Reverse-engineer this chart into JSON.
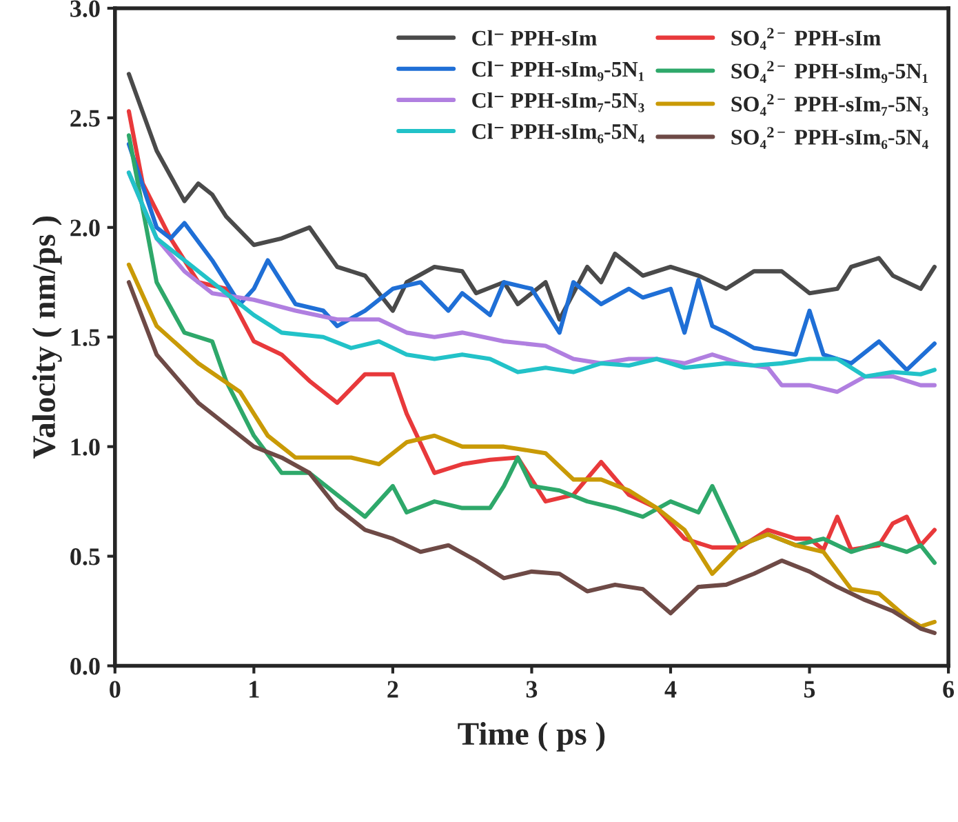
{
  "chart_data": {
    "type": "line",
    "xlabel": "Time ( ps )",
    "ylabel": "Valocity ( nm/ps )",
    "xlim": [
      0,
      6
    ],
    "ylim": [
      0,
      3.0
    ],
    "xticks": [
      0,
      1,
      2,
      3,
      4,
      5,
      6
    ],
    "yticks": [
      {
        "value": 0,
        "label": "0.0"
      },
      0.5,
      {
        "value": 1,
        "label": "1.0"
      },
      1.5,
      {
        "value": 2,
        "label": "2.0"
      },
      2.5,
      {
        "value": 3,
        "label": "3.0"
      }
    ],
    "grid": false,
    "legend": "top right",
    "line_style": "solid",
    "marker": "none",
    "series": [
      {
        "name": "Cl⁻ PPH-sIm",
        "color": "#4a4a4a",
        "x": [
          0.1,
          0.3,
          0.5,
          0.6,
          0.7,
          0.8,
          1.0,
          1.2,
          1.4,
          1.6,
          1.8,
          2.0,
          2.1,
          2.3,
          2.5,
          2.6,
          2.8,
          2.9,
          3.1,
          3.2,
          3.4,
          3.5,
          3.6,
          3.8,
          4.0,
          4.2,
          4.4,
          4.6,
          4.8,
          5.0,
          5.2,
          5.3,
          5.5,
          5.6,
          5.8,
          5.9
        ],
        "values": [
          2.7,
          2.35,
          2.12,
          2.2,
          2.15,
          2.05,
          1.92,
          1.95,
          2.0,
          1.82,
          1.78,
          1.62,
          1.75,
          1.82,
          1.8,
          1.7,
          1.75,
          1.65,
          1.75,
          1.58,
          1.82,
          1.75,
          1.88,
          1.78,
          1.82,
          1.78,
          1.72,
          1.8,
          1.8,
          1.7,
          1.72,
          1.82,
          1.86,
          1.78,
          1.72,
          1.82
        ]
      },
      {
        "name": "SO₄$^{2−}$ PPH-sIm",
        "color": "#e8393b",
        "x": [
          0.1,
          0.2,
          0.4,
          0.6,
          0.8,
          1.0,
          1.2,
          1.4,
          1.6,
          1.8,
          2.0,
          2.1,
          2.3,
          2.5,
          2.7,
          2.9,
          3.1,
          3.3,
          3.5,
          3.7,
          3.9,
          4.1,
          4.3,
          4.5,
          4.7,
          4.9,
          5.0,
          5.1,
          5.2,
          5.3,
          5.5,
          5.6,
          5.7,
          5.8,
          5.9
        ],
        "values": [
          2.53,
          2.2,
          1.95,
          1.75,
          1.72,
          1.48,
          1.42,
          1.3,
          1.2,
          1.33,
          1.33,
          1.15,
          0.88,
          0.92,
          0.94,
          0.95,
          0.75,
          0.78,
          0.93,
          0.78,
          0.72,
          0.58,
          0.54,
          0.54,
          0.62,
          0.58,
          0.58,
          0.53,
          0.68,
          0.53,
          0.55,
          0.65,
          0.68,
          0.55,
          0.62
        ]
      },
      {
        "name": "Cl⁻ PPH-sIm₉-5N₁",
        "color": "#1f6fd6",
        "x": [
          0.1,
          0.3,
          0.4,
          0.5,
          0.7,
          0.9,
          1.0,
          1.1,
          1.3,
          1.5,
          1.6,
          1.8,
          2.0,
          2.2,
          2.4,
          2.5,
          2.7,
          2.8,
          3.0,
          3.2,
          3.3,
          3.5,
          3.7,
          3.8,
          4.0,
          4.1,
          4.2,
          4.3,
          4.4,
          4.6,
          4.9,
          5.0,
          5.1,
          5.3,
          5.5,
          5.7,
          5.9
        ],
        "values": [
          2.38,
          2.0,
          1.95,
          2.02,
          1.85,
          1.65,
          1.72,
          1.85,
          1.65,
          1.62,
          1.55,
          1.62,
          1.72,
          1.75,
          1.62,
          1.7,
          1.6,
          1.75,
          1.72,
          1.52,
          1.75,
          1.65,
          1.72,
          1.68,
          1.72,
          1.52,
          1.76,
          1.55,
          1.52,
          1.45,
          1.42,
          1.62,
          1.42,
          1.38,
          1.48,
          1.35,
          1.47
        ]
      },
      {
        "name": "SO₄$^{2−}$ PPH-sIm₉-5N₁",
        "color": "#2ea86a",
        "x": [
          0.1,
          0.3,
          0.5,
          0.7,
          0.8,
          1.0,
          1.2,
          1.4,
          1.6,
          1.8,
          2.0,
          2.1,
          2.3,
          2.5,
          2.7,
          2.8,
          2.9,
          3.0,
          3.2,
          3.4,
          3.6,
          3.8,
          4.0,
          4.2,
          4.3,
          4.5,
          4.7,
          4.9,
          5.1,
          5.3,
          5.5,
          5.7,
          5.8,
          5.9
        ],
        "values": [
          2.42,
          1.75,
          1.52,
          1.48,
          1.3,
          1.05,
          0.88,
          0.88,
          0.78,
          0.68,
          0.82,
          0.7,
          0.75,
          0.72,
          0.72,
          0.82,
          0.95,
          0.82,
          0.8,
          0.75,
          0.72,
          0.68,
          0.75,
          0.7,
          0.82,
          0.55,
          0.6,
          0.55,
          0.58,
          0.52,
          0.56,
          0.52,
          0.55,
          0.47
        ]
      },
      {
        "name": "Cl⁻ PPH-sIm₇-5N₃",
        "color": "#b07fe0",
        "x": [
          0.1,
          0.3,
          0.5,
          0.7,
          1.0,
          1.3,
          1.6,
          1.9,
          2.1,
          2.3,
          2.5,
          2.8,
          3.1,
          3.3,
          3.5,
          3.7,
          3.9,
          4.1,
          4.3,
          4.5,
          4.7,
          4.8,
          5.0,
          5.2,
          5.4,
          5.6,
          5.8,
          5.9
        ],
        "values": [
          2.25,
          1.95,
          1.8,
          1.7,
          1.67,
          1.62,
          1.58,
          1.58,
          1.52,
          1.5,
          1.52,
          1.48,
          1.46,
          1.4,
          1.38,
          1.4,
          1.4,
          1.38,
          1.42,
          1.38,
          1.36,
          1.28,
          1.28,
          1.25,
          1.32,
          1.32,
          1.28,
          1.28
        ]
      },
      {
        "name": "SO₄$^{2−}$ PPH-sIm₇-5N₃",
        "color": "#c99a06",
        "x": [
          0.1,
          0.3,
          0.6,
          0.9,
          1.1,
          1.3,
          1.5,
          1.7,
          1.9,
          2.1,
          2.3,
          2.5,
          2.8,
          3.0,
          3.1,
          3.3,
          3.5,
          3.7,
          3.9,
          4.1,
          4.3,
          4.5,
          4.7,
          4.9,
          5.1,
          5.3,
          5.5,
          5.7,
          5.8,
          5.9
        ],
        "values": [
          1.83,
          1.55,
          1.38,
          1.25,
          1.05,
          0.95,
          0.95,
          0.95,
          0.92,
          1.02,
          1.05,
          1.0,
          1.0,
          0.98,
          0.97,
          0.85,
          0.85,
          0.8,
          0.72,
          0.62,
          0.42,
          0.55,
          0.6,
          0.55,
          0.52,
          0.35,
          0.33,
          0.22,
          0.18,
          0.2
        ]
      },
      {
        "name": "Cl⁻ PPH-sIm₆-5N₄",
        "color": "#22c2c8",
        "x": [
          0.1,
          0.3,
          0.5,
          0.8,
          1.0,
          1.2,
          1.5,
          1.7,
          1.9,
          2.1,
          2.3,
          2.5,
          2.7,
          2.9,
          3.1,
          3.3,
          3.5,
          3.7,
          3.9,
          4.1,
          4.4,
          4.6,
          4.8,
          5.0,
          5.2,
          5.4,
          5.6,
          5.8,
          5.9
        ],
        "values": [
          2.25,
          1.95,
          1.85,
          1.7,
          1.6,
          1.52,
          1.5,
          1.45,
          1.48,
          1.42,
          1.4,
          1.42,
          1.4,
          1.34,
          1.36,
          1.34,
          1.38,
          1.37,
          1.4,
          1.36,
          1.38,
          1.37,
          1.38,
          1.4,
          1.4,
          1.32,
          1.34,
          1.33,
          1.35
        ]
      },
      {
        "name": "SO₄$^{2−}$ PPH-sIm₆-5N₄",
        "color": "#6e4a46",
        "x": [
          0.1,
          0.3,
          0.6,
          0.8,
          1.0,
          1.2,
          1.4,
          1.6,
          1.8,
          2.0,
          2.2,
          2.4,
          2.6,
          2.8,
          3.0,
          3.2,
          3.4,
          3.6,
          3.8,
          4.0,
          4.2,
          4.4,
          4.6,
          4.8,
          5.0,
          5.2,
          5.4,
          5.6,
          5.8,
          5.9
        ],
        "values": [
          1.75,
          1.42,
          1.2,
          1.1,
          1.0,
          0.95,
          0.88,
          0.72,
          0.62,
          0.58,
          0.52,
          0.55,
          0.48,
          0.4,
          0.43,
          0.42,
          0.34,
          0.37,
          0.35,
          0.24,
          0.36,
          0.37,
          0.42,
          0.48,
          0.43,
          0.36,
          0.3,
          0.25,
          0.17,
          0.15
        ]
      }
    ]
  }
}
